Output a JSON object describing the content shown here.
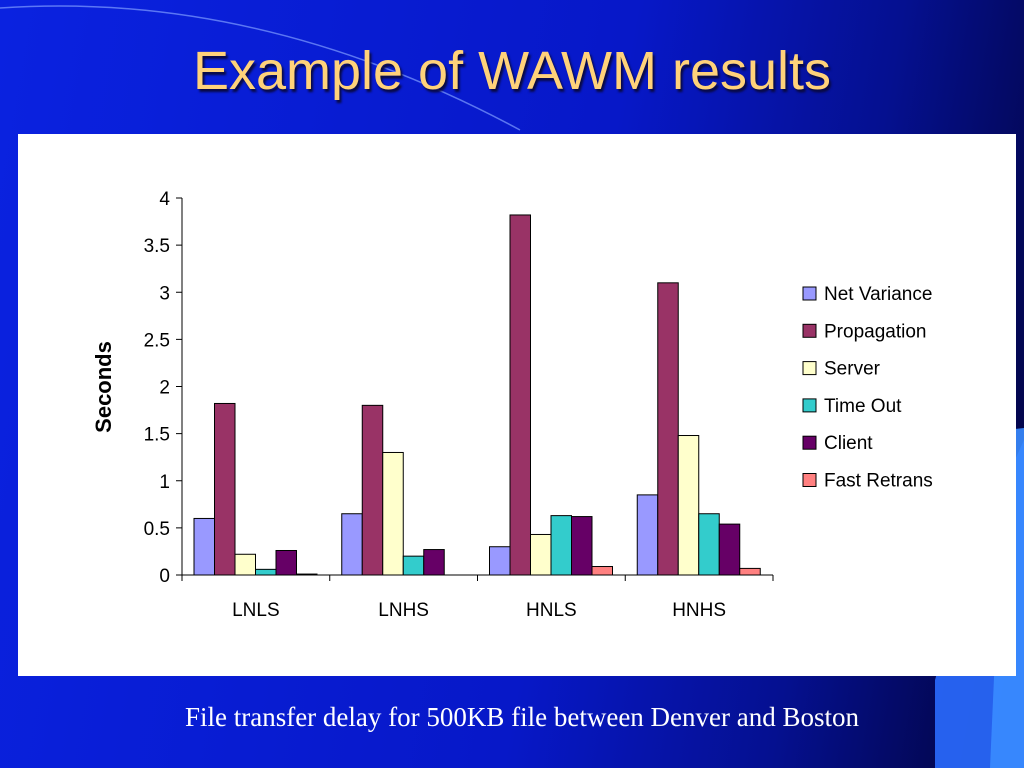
{
  "slide": {
    "title": "Example of WAWM results",
    "caption": "File transfer delay for 500KB file between Denver and Boston"
  },
  "colors": {
    "title": "#ffd27a",
    "background": "#0718c8"
  },
  "chart_data": {
    "type": "bar",
    "title": "",
    "xlabel": "",
    "ylabel": "Seconds",
    "ylim": [
      0,
      4
    ],
    "yticks": [
      "0",
      "0.5",
      "1",
      "1.5",
      "2",
      "2.5",
      "3",
      "3.5",
      "4"
    ],
    "grid": false,
    "legend_position": "right",
    "categories": [
      "LNLS",
      "LNHS",
      "HNLS",
      "HNHS"
    ],
    "series": [
      {
        "name": "Net Variance",
        "color": "#9999ff",
        "values": [
          0.6,
          0.65,
          0.3,
          0.85
        ]
      },
      {
        "name": "Propagation",
        "color": "#993366",
        "values": [
          1.82,
          1.8,
          3.82,
          3.1
        ]
      },
      {
        "name": "Server",
        "color": "#ffffcc",
        "values": [
          0.22,
          1.3,
          0.43,
          1.48
        ]
      },
      {
        "name": "Time Out",
        "color": "#33cccc",
        "values": [
          0.06,
          0.2,
          0.63,
          0.65
        ]
      },
      {
        "name": "Client",
        "color": "#660066",
        "values": [
          0.26,
          0.27,
          0.62,
          0.54
        ]
      },
      {
        "name": "Fast Retrans",
        "color": "#ff8080",
        "values": [
          0.01,
          0.0,
          0.09,
          0.07
        ]
      }
    ]
  }
}
